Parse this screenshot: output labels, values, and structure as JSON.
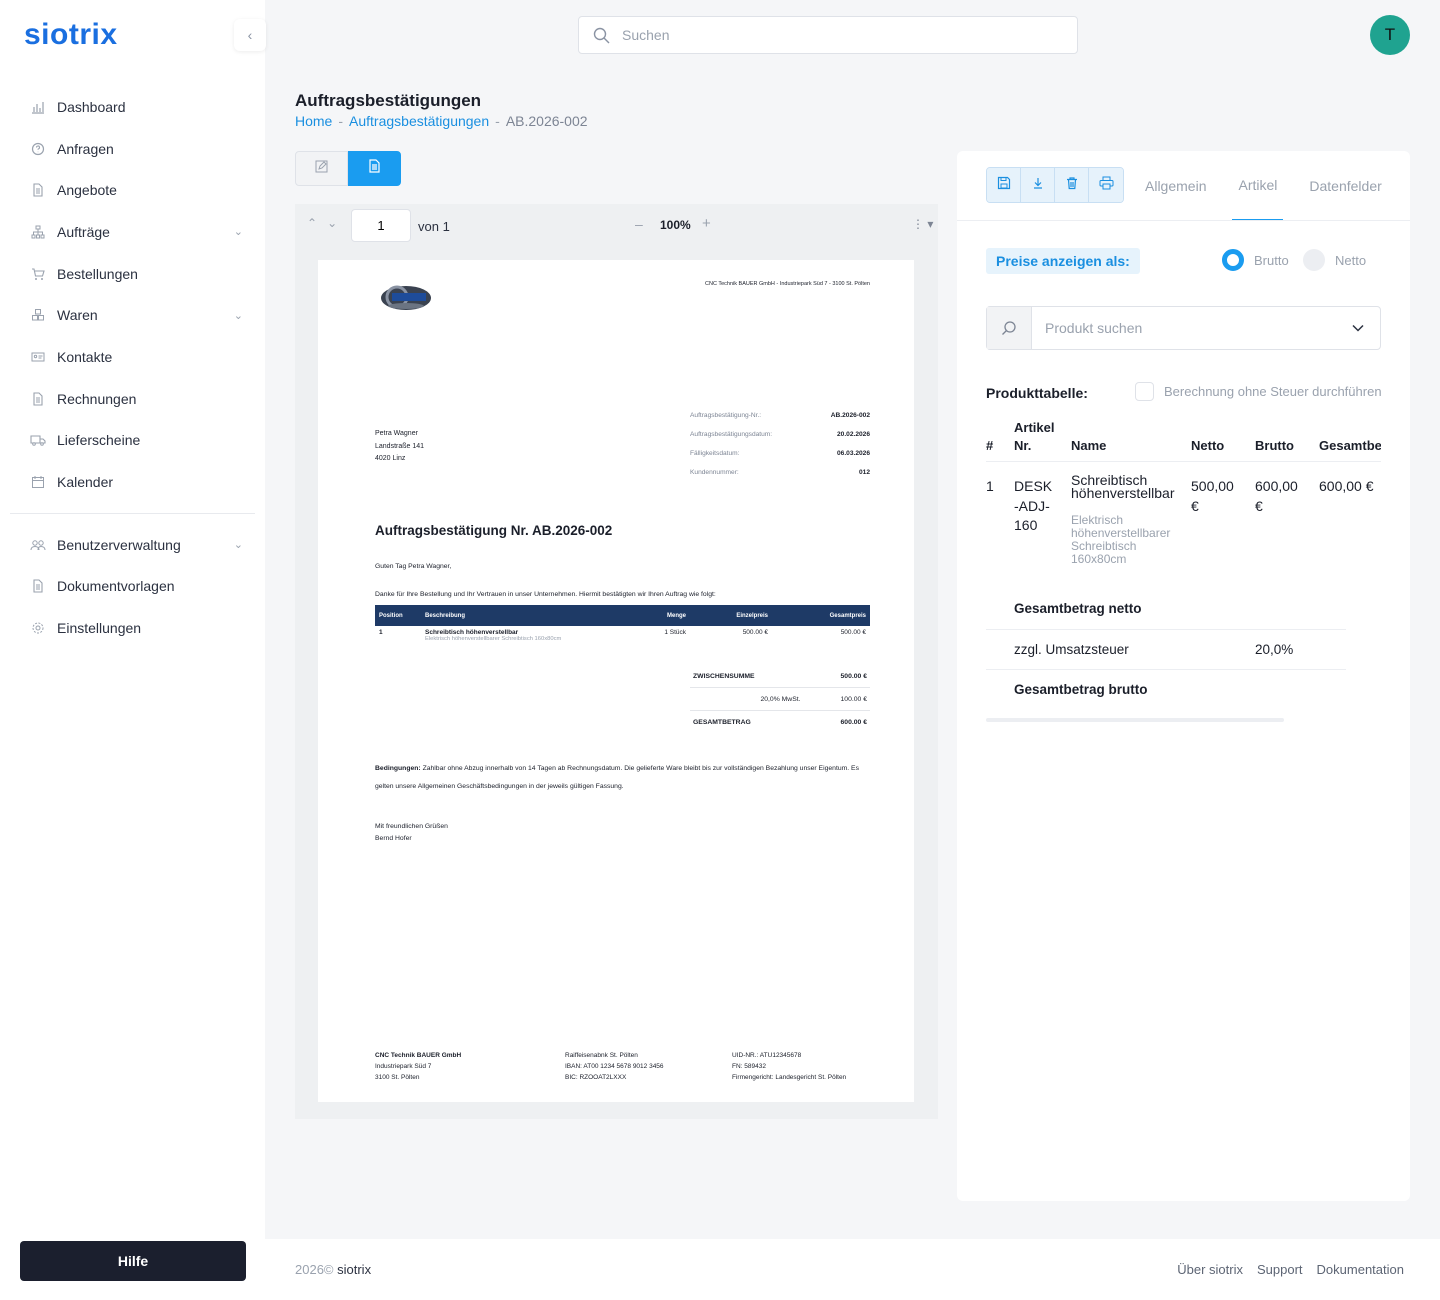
{
  "app": {
    "logo": "siotrix"
  },
  "sidebar": {
    "items": [
      {
        "label": "Dashboard",
        "icon": "bar-chart-icon"
      },
      {
        "label": "Anfragen",
        "icon": "question-circle-icon"
      },
      {
        "label": "Angebote",
        "icon": "document-icon"
      },
      {
        "label": "Aufträge",
        "icon": "sitemap-icon",
        "expandable": true
      },
      {
        "label": "Bestellungen",
        "icon": "cart-icon"
      },
      {
        "label": "Waren",
        "icon": "boxes-icon",
        "expandable": true
      },
      {
        "label": "Kontakte",
        "icon": "id-card-icon"
      },
      {
        "label": "Rechnungen",
        "icon": "document-icon"
      },
      {
        "label": "Lieferscheine",
        "icon": "truck-icon"
      },
      {
        "label": "Kalender",
        "icon": "calendar-icon"
      }
    ],
    "admin_items": [
      {
        "label": "Benutzerverwaltung",
        "icon": "users-icon",
        "expandable": true
      },
      {
        "label": "Dokumentvorlagen",
        "icon": "document-icon"
      },
      {
        "label": "Einstellungen",
        "icon": "gear-icon"
      }
    ],
    "help_label": "Hilfe"
  },
  "header": {
    "search_placeholder": "Suchen",
    "avatar_initial": "T"
  },
  "page": {
    "title": "Auftragsbestätigungen",
    "breadcrumb": {
      "home": "Home",
      "section": "Auftragsbestätigungen",
      "separator": "-",
      "current": "AB.2026-002"
    }
  },
  "viewer": {
    "page_value": "1",
    "page_of": "von 1",
    "zoom": "100%"
  },
  "document": {
    "sender_line": "CNC Technik BAUER GmbH - Industriepark Süd 7 - 3100 St. Pölten",
    "recipient": [
      "Petra Wagner",
      "Landstraße 141",
      "4020 Linz"
    ],
    "meta": [
      {
        "k": "Auftragsbestätigung-Nr.:",
        "v": "AB.2026-002"
      },
      {
        "k": "Auftragsbestätigungsdatum:",
        "v": "20.02.2026"
      },
      {
        "k": "Fälligkeitsdatum:",
        "v": "06.03.2026"
      },
      {
        "k": "Kundennummer:",
        "v": "012"
      }
    ],
    "heading": "Auftragsbestätigung Nr. AB.2026-002",
    "greeting": "Guten Tag Petra Wagner,",
    "intro": "Danke für Ihre Bestellung und Ihr Vertrauen in unser Unternehmen. Hiermit bestätigten wir Ihren Auftrag wie folgt:",
    "table_headers": {
      "pos": "Position",
      "desc": "Beschreibung",
      "qty": "Menge",
      "unit": "Einzelpreis",
      "total": "Gesamtpreis"
    },
    "items": [
      {
        "pos": "1",
        "name": "Schreibtisch höhenverstellbar",
        "sub": "Elektrisch höhenverstellbarer Schreibtisch 160x80cm",
        "qty": "1 Stück",
        "unit": "500.00 €",
        "total": "500.00 €"
      }
    ],
    "totals": [
      {
        "k": "ZWISCHENSUMME",
        "v": "500.00 €",
        "bold": true
      },
      {
        "k": "20,0% MwSt.",
        "v": "100.00 €",
        "bold": false
      },
      {
        "k": "GESAMTBETRAG",
        "v": "600.00 €",
        "bold": true
      }
    ],
    "conditions_label": "Bedingungen:",
    "conditions_text": " Zahlbar ohne Abzug innerhalb von 14 Tagen ab Rechnungsdatum. Die gelieferte Ware bleibt bis zur vollständigen Bezahlung unser Eigentum. Es gelten unsere Allgemeinen Geschäftsbedingungen in der jeweils gültigen Fassung.",
    "closing": [
      "Mit freundlichen Grüßen",
      "Bernd Hofer"
    ],
    "footer": {
      "col1": [
        "CNC Technik BAUER GmbH",
        "Industriepark Süd 7",
        "3100 St. Pölten"
      ],
      "col2": [
        "Raiffeisenabnk St. Pölten",
        "IBAN: AT00 1234 5678 9012 3456",
        "BIC: RZOOAT2LXXX"
      ],
      "col3": [
        "UID-NR.: ATU12345678",
        "FN: 589432",
        "Firmengericht: Landesgericht St. Pölten"
      ]
    }
  },
  "panel": {
    "tabs": [
      "Allgemein",
      "Artikel",
      "Datenfelder"
    ],
    "active_tab": "Artikel",
    "price_label": "Preise anzeigen als:",
    "radio_brutto": "Brutto",
    "radio_netto": "Netto",
    "product_search_placeholder": "Produkt suchen",
    "table_label": "Produkttabelle:",
    "tax_checkbox_label": "Berechnung ohne Steuer durchführen",
    "headers": {
      "num": "#",
      "art_a": "Artikel",
      "art_b": "Nr.",
      "name": "Name",
      "netto": "Netto",
      "brutto": "Brutto",
      "gesamt": "Gesamtbetrag"
    },
    "rows": [
      {
        "num": "1",
        "art": [
          "DESK",
          "-ADJ-",
          "160"
        ],
        "name": [
          "Schreibtisch",
          "höhenverstellbar"
        ],
        "desc": [
          "Elektrisch",
          "höhenverstellbarer",
          "Schreibtisch",
          "160x80cm"
        ],
        "netto": [
          "500,00",
          "€"
        ],
        "brutto": [
          "600,00",
          "€"
        ],
        "gesamt": "600,00 €"
      }
    ],
    "summary": {
      "netto_label": "Gesamtbetrag netto",
      "tax_label": "zzgl. Umsatzsteuer",
      "tax_value": "20,0%",
      "brutto_label": "Gesamtbetrag brutto"
    }
  },
  "footer": {
    "year": "2026©",
    "brand": "siotrix",
    "links": [
      "Über siotrix",
      "Support",
      "Dokumentation"
    ]
  }
}
